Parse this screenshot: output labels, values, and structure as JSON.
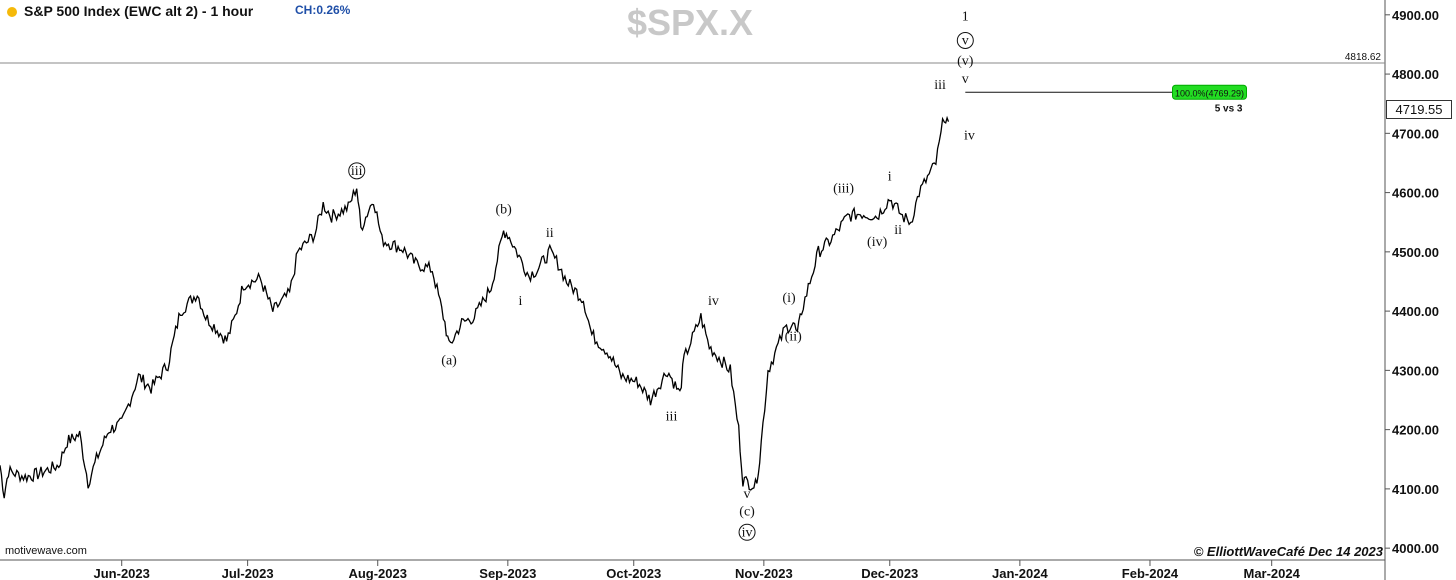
{
  "header": {
    "title": "S&P 500 Index (EWC alt 2) - 1 hour",
    "change": "CH:0.26%",
    "symbol": "$SPX.X"
  },
  "footer": {
    "brand": "motivewave.com",
    "credit": "© ElliottWaveCafé Dec 14 2023"
  },
  "price_tag": "4719.55",
  "chart_data": {
    "type": "line",
    "title": "S&P 500 Index (EWC alt 2) - 1 hour",
    "xlabel": "",
    "ylabel": "",
    "ylim": [
      3980,
      4925
    ],
    "grid": false,
    "y_ticks": [
      "4000.00",
      "4100.00",
      "4200.00",
      "4300.00",
      "4400.00",
      "4500.00",
      "4600.00",
      "4700.00",
      "4800.00",
      "4900.00"
    ],
    "x_ticks": [
      "Jun-2023",
      "Jul-2023",
      "Aug-2023",
      "Sep-2023",
      "Oct-2023",
      "Nov-2023",
      "Dec-2023",
      "Jan-2024",
      "Feb-2024",
      "Mar-2024"
    ],
    "x_tick_dates": [
      "2023-06-01",
      "2023-07-01",
      "2023-08-01",
      "2023-09-01",
      "2023-10-01",
      "2023-11-01",
      "2023-12-01",
      "2024-01-01",
      "2024-02-01",
      "2024-03-01"
    ],
    "x_range": [
      "2023-05-03",
      "2024-03-28"
    ],
    "reference_line": {
      "value": 4818.62,
      "label": "4818.62"
    },
    "projection": {
      "value": 4769.29,
      "label": "100.0%(4769.29)",
      "note": "5 vs 3",
      "from": "2023-12-19",
      "to": "2024-02-24"
    },
    "series": [
      {
        "values": [
          [
            "2023-05-03",
            4140
          ],
          [
            "2023-05-04",
            4090
          ],
          [
            "2023-05-05",
            4130
          ],
          [
            "2023-05-09",
            4120
          ],
          [
            "2023-05-12",
            4125
          ],
          [
            "2023-05-17",
            4140
          ],
          [
            "2023-05-19",
            4180
          ],
          [
            "2023-05-22",
            4192
          ],
          [
            "2023-05-24",
            4110
          ],
          [
            "2023-05-26",
            4150
          ],
          [
            "2023-05-29",
            4200
          ],
          [
            "2023-06-01",
            4210
          ],
          [
            "2023-06-05",
            4290
          ],
          [
            "2023-06-08",
            4270
          ],
          [
            "2023-06-12",
            4310
          ],
          [
            "2023-06-15",
            4400
          ],
          [
            "2023-06-19",
            4430
          ],
          [
            "2023-06-21",
            4390
          ],
          [
            "2023-06-23",
            4375
          ],
          [
            "2023-06-26",
            4350
          ],
          [
            "2023-06-28",
            4390
          ],
          [
            "2023-06-30",
            4445
          ],
          [
            "2023-07-04",
            4455
          ],
          [
            "2023-07-07",
            4400
          ],
          [
            "2023-07-11",
            4430
          ],
          [
            "2023-07-13",
            4500
          ],
          [
            "2023-07-17",
            4530
          ],
          [
            "2023-07-19",
            4580
          ],
          [
            "2023-07-21",
            4560
          ],
          [
            "2023-07-25",
            4575
          ],
          [
            "2023-07-27",
            4610
          ],
          [
            "2023-07-28",
            4540
          ],
          [
            "2023-07-31",
            4590
          ],
          [
            "2023-08-02",
            4520
          ],
          [
            "2023-08-07",
            4505
          ],
          [
            "2023-08-10",
            4480
          ],
          [
            "2023-08-14",
            4470
          ],
          [
            "2023-08-17",
            4380
          ],
          [
            "2023-08-18",
            4340
          ],
          [
            "2023-08-21",
            4380
          ],
          [
            "2023-08-24",
            4390
          ],
          [
            "2023-08-28",
            4440
          ],
          [
            "2023-08-31",
            4535
          ],
          [
            "2023-09-01",
            4530
          ],
          [
            "2023-09-06",
            4460
          ],
          [
            "2023-09-08",
            4470
          ],
          [
            "2023-09-11",
            4500
          ],
          [
            "2023-09-13",
            4480
          ],
          [
            "2023-09-15",
            4450
          ],
          [
            "2023-09-19",
            4420
          ],
          [
            "2023-09-21",
            4360
          ],
          [
            "2023-09-25",
            4330
          ],
          [
            "2023-09-28",
            4290
          ],
          [
            "2023-10-02",
            4280
          ],
          [
            "2023-10-05",
            4250
          ],
          [
            "2023-10-09",
            4300
          ],
          [
            "2023-10-12",
            4260
          ],
          [
            "2023-10-13",
            4320
          ],
          [
            "2023-10-17",
            4390
          ],
          [
            "2023-10-19",
            4340
          ],
          [
            "2023-10-24",
            4300
          ],
          [
            "2023-10-26",
            4200
          ],
          [
            "2023-10-27",
            4115
          ],
          [
            "2023-10-30",
            4105
          ],
          [
            "2023-10-31",
            4150
          ],
          [
            "2023-11-02",
            4300
          ],
          [
            "2023-11-06",
            4370
          ],
          [
            "2023-11-08",
            4380
          ],
          [
            "2023-11-09",
            4360
          ],
          [
            "2023-11-10",
            4400
          ],
          [
            "2023-11-14",
            4500
          ],
          [
            "2023-11-17",
            4520
          ],
          [
            "2023-11-21",
            4560
          ],
          [
            "2023-11-24",
            4565
          ],
          [
            "2023-11-28",
            4560
          ],
          [
            "2023-12-01",
            4590
          ],
          [
            "2023-12-04",
            4560
          ],
          [
            "2023-12-06",
            4550
          ],
          [
            "2023-12-08",
            4600
          ],
          [
            "2023-12-12",
            4650
          ],
          [
            "2023-12-14",
            4730
          ],
          [
            "2023-12-15",
            4719.55
          ]
        ]
      }
    ],
    "annotations": [
      {
        "label": "ⓘⓘⓘ",
        "text": "iii",
        "circled": true,
        "date": "2023-07-27",
        "price": 4630
      },
      {
        "text": "(a)",
        "date": "2023-08-18",
        "price": 4310
      },
      {
        "text": "(b)",
        "date": "2023-08-31",
        "price": 4565
      },
      {
        "text": "ii",
        "date": "2023-09-11",
        "price": 4525
      },
      {
        "text": "i",
        "date": "2023-09-04",
        "price": 4410
      },
      {
        "text": "iii",
        "date": "2023-10-10",
        "price": 4215
      },
      {
        "text": "iv",
        "date": "2023-10-20",
        "price": 4410
      },
      {
        "text": "v",
        "date": "2023-10-28",
        "price": 4085
      },
      {
        "text": "(c)",
        "date": "2023-10-28",
        "price": 4055
      },
      {
        "text": "iv",
        "circled": true,
        "date": "2023-10-28",
        "price": 4020
      },
      {
        "text": "(i)",
        "date": "2023-11-07",
        "price": 4415
      },
      {
        "text": "(ii)",
        "date": "2023-11-08",
        "price": 4350
      },
      {
        "text": "(iii)",
        "date": "2023-11-20",
        "price": 4600
      },
      {
        "text": "(iv)",
        "date": "2023-11-28",
        "price": 4510
      },
      {
        "text": "i",
        "date": "2023-12-01",
        "price": 4620
      },
      {
        "text": "ii",
        "date": "2023-12-03",
        "price": 4530
      },
      {
        "text": "iii",
        "date": "2023-12-13",
        "price": 4775
      },
      {
        "text": "iv",
        "date": "2023-12-20",
        "price": 4690
      },
      {
        "text": "v",
        "date": "2023-12-19",
        "price": 4785
      },
      {
        "text": "(v)",
        "date": "2023-12-19",
        "price": 4815
      },
      {
        "text": "v",
        "circled": true,
        "date": "2023-12-19",
        "price": 4850
      },
      {
        "text": "1",
        "date": "2023-12-19",
        "price": 4890
      }
    ],
    "colors": {
      "line": "#000000",
      "projection_box": "#22dd22",
      "reference": "#888888"
    }
  }
}
